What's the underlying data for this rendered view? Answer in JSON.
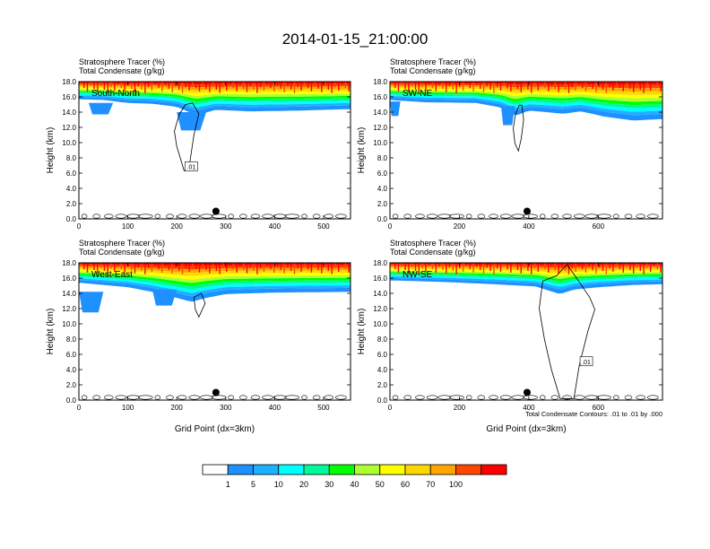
{
  "title": "2014-01-15_21:00:00",
  "field_label_1": "Stratosphere Tracer   (%)",
  "field_label_2": "Total Condensate   (g/kg)",
  "ylabel": "Height (km)",
  "xlabel": "Grid Point (dx=3km)",
  "contour_note": "Total Condensate Contours: .01 to .01 by .000",
  "colorbar": {
    "colors": [
      "#ffffff",
      "#1e90ff",
      "#1cb1ff",
      "#00ffff",
      "#00fa9a",
      "#00ff00",
      "#adff2f",
      "#ffff00",
      "#ffd700",
      "#ffa500",
      "#ff4500",
      "#ff0000"
    ],
    "labels": [
      "1",
      "5",
      "10",
      "20",
      "30",
      "40",
      "50",
      "60",
      "70",
      "100"
    ]
  },
  "chart_data": [
    {
      "type": "heatmap",
      "panel": "South-North",
      "title": "South-North",
      "xlabel": "",
      "ylabel": "Height (km)",
      "xlim": [
        0,
        555
      ],
      "ylim": [
        0,
        18
      ],
      "xticks": [
        "0",
        "100",
        "200",
        "300",
        "400",
        "500"
      ],
      "yticks": [
        "0.0",
        "2.0",
        "4.0",
        "6.0",
        "8.0",
        "10.0",
        "12.0",
        "14.0",
        "16.0",
        "18.0"
      ],
      "contour_label": ".01",
      "marker": {
        "x": 280,
        "y": 1.0
      },
      "stripe_bottom": [
        [
          0,
          15.7
        ],
        [
          50,
          15.6
        ],
        [
          100,
          15.2
        ],
        [
          150,
          15.1
        ],
        [
          200,
          14.7
        ],
        [
          240,
          13.6
        ],
        [
          280,
          14.3
        ],
        [
          350,
          14.1
        ],
        [
          450,
          14.2
        ],
        [
          555,
          14.4
        ]
      ],
      "blue_patches": [
        {
          "x": [
            20,
            70
          ],
          "y": [
            13.7,
            15.2
          ]
        },
        {
          "x": [
            200,
            260
          ],
          "y": [
            11.6,
            14.0
          ]
        }
      ],
      "cloud": [
        [
          232,
          15.2
        ],
        [
          245,
          13.8
        ],
        [
          235,
          11.0
        ],
        [
          228,
          8.0
        ],
        [
          225,
          6.6
        ],
        [
          215,
          6.3
        ],
        [
          208,
          7.8
        ],
        [
          200,
          9.5
        ],
        [
          195,
          11.5
        ],
        [
          205,
          13.7
        ],
        [
          218,
          15.0
        ]
      ]
    },
    {
      "type": "heatmap",
      "panel": "SW-NE",
      "title": "SW-NE",
      "xlabel": "",
      "ylabel": "Height (km)",
      "xlim": [
        0,
        785
      ],
      "ylim": [
        0,
        18
      ],
      "xticks": [
        "0",
        "200",
        "400",
        "600"
      ],
      "yticks": [
        "0.0",
        "2.0",
        "4.0",
        "6.0",
        "8.0",
        "10.0",
        "12.0",
        "14.0",
        "16.0",
        "18.0"
      ],
      "contour_label": "",
      "marker": {
        "x": 395,
        "y": 1.0
      },
      "stripe_bottom": [
        [
          0,
          15.6
        ],
        [
          100,
          15.3
        ],
        [
          250,
          15.2
        ],
        [
          320,
          14.6
        ],
        [
          360,
          13.5
        ],
        [
          400,
          14.2
        ],
        [
          500,
          13.8
        ],
        [
          550,
          14.1
        ],
        [
          620,
          13.4
        ],
        [
          700,
          12.9
        ],
        [
          785,
          13.1
        ]
      ],
      "blue_patches": [
        {
          "x": [
            0,
            30
          ],
          "y": [
            13.5,
            15.4
          ]
        },
        {
          "x": [
            320,
            360
          ],
          "y": [
            12.3,
            14.8
          ]
        }
      ],
      "cloud": [
        [
          380,
          14.9
        ],
        [
          385,
          13.0
        ],
        [
          378,
          10.5
        ],
        [
          370,
          8.9
        ],
        [
          360,
          9.9
        ],
        [
          355,
          11.9
        ],
        [
          362,
          13.8
        ],
        [
          372,
          14.9
        ]
      ]
    },
    {
      "type": "heatmap",
      "panel": "West-East",
      "title": "West-East",
      "xlabel": "Grid Point (dx=3km)",
      "ylabel": "Height (km)",
      "xlim": [
        0,
        555
      ],
      "ylim": [
        0,
        18
      ],
      "xticks": [
        "0",
        "100",
        "200",
        "300",
        "400",
        "500"
      ],
      "yticks": [
        "0.0",
        "2.0",
        "4.0",
        "6.0",
        "8.0",
        "10.0",
        "12.0",
        "14.0",
        "16.0",
        "18.0"
      ],
      "contour_label": "",
      "marker": {
        "x": 280,
        "y": 1.0
      },
      "stripe_bottom": [
        [
          0,
          15.4
        ],
        [
          50,
          15.1
        ],
        [
          100,
          14.8
        ],
        [
          150,
          14.2
        ],
        [
          200,
          13.4
        ],
        [
          230,
          12.9
        ],
        [
          260,
          13.4
        ],
        [
          300,
          13.9
        ],
        [
          400,
          14.1
        ],
        [
          555,
          14.2
        ]
      ],
      "blue_patches": [
        {
          "x": [
            0,
            50
          ],
          "y": [
            11.5,
            14.2
          ]
        },
        {
          "x": [
            150,
            200
          ],
          "y": [
            12.4,
            14.5
          ]
        }
      ],
      "cloud": [
        [
          250,
          14.0
        ],
        [
          258,
          12.7
        ],
        [
          245,
          10.9
        ],
        [
          238,
          11.9
        ],
        [
          235,
          13.5
        ]
      ]
    },
    {
      "type": "heatmap",
      "panel": "NW-SE",
      "title": "NW-SE",
      "xlabel": "Grid Point (dx=3km)",
      "ylabel": "Height (km)",
      "xlim": [
        0,
        785
      ],
      "ylim": [
        0,
        18
      ],
      "xticks": [
        "0",
        "200",
        "400",
        "600"
      ],
      "yticks": [
        "0.0",
        "2.0",
        "4.0",
        "6.0",
        "8.0",
        "10.0",
        "12.0",
        "14.0",
        "16.0",
        "18.0"
      ],
      "contour_label": ".01",
      "marker": {
        "x": 395,
        "y": 1.0
      },
      "stripe_bottom": [
        [
          0,
          15.7
        ],
        [
          150,
          15.5
        ],
        [
          300,
          15.2
        ],
        [
          420,
          14.9
        ],
        [
          490,
          13.9
        ],
        [
          530,
          14.5
        ],
        [
          600,
          14.8
        ],
        [
          700,
          15.1
        ],
        [
          785,
          15.2
        ]
      ],
      "blue_patches": [],
      "cloud": [
        [
          440,
          15.6
        ],
        [
          430,
          12.0
        ],
        [
          445,
          8.0
        ],
        [
          465,
          4.0
        ],
        [
          490,
          0.2
        ],
        [
          530,
          0.2
        ],
        [
          545,
          4.5
        ],
        [
          570,
          9.0
        ],
        [
          590,
          11.9
        ],
        [
          575,
          13.5
        ],
        [
          545,
          15.5
        ],
        [
          510,
          17.8
        ],
        [
          480,
          16.3
        ]
      ]
    }
  ]
}
